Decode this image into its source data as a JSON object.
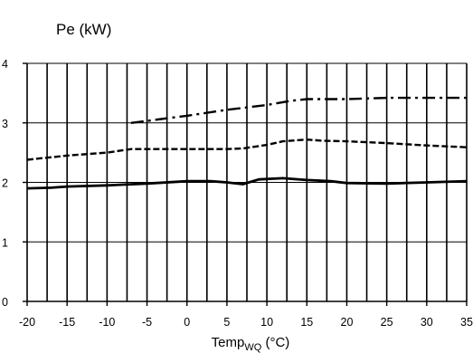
{
  "chart_data": {
    "type": "line",
    "ylabel": "Pe (kW)",
    "xlabel_main": "Temp",
    "xlabel_sub": "WQ",
    "xlabel_unit": " (°C)",
    "xlim": [
      -20,
      35
    ],
    "ylim": [
      0,
      4
    ],
    "x_ticks": [
      -20,
      -15,
      -10,
      -5,
      0,
      5,
      10,
      15,
      20,
      25,
      30,
      35
    ],
    "x_tick_labels": [
      "-20",
      "-15",
      "-10",
      "-5",
      "0",
      "5",
      "10",
      "15",
      "20",
      "25",
      "30",
      "35"
    ],
    "y_ticks": [
      0,
      1,
      2,
      3,
      4
    ],
    "y_tick_labels": [
      "0",
      "1",
      "2",
      "3",
      "4"
    ],
    "grid": "vertical",
    "series": [
      {
        "style": "solid",
        "points": [
          [
            -20,
            1.9
          ],
          [
            -17,
            1.91
          ],
          [
            -15,
            1.93
          ],
          [
            -10,
            1.95
          ],
          [
            -5,
            1.98
          ],
          [
            0,
            2.02
          ],
          [
            3,
            2.02
          ],
          [
            5,
            2.0
          ],
          [
            7,
            1.97
          ],
          [
            9,
            2.05
          ],
          [
            12,
            2.07
          ],
          [
            15,
            2.04
          ],
          [
            18,
            2.02
          ],
          [
            20,
            1.99
          ],
          [
            25,
            1.98
          ],
          [
            30,
            2.0
          ],
          [
            35,
            2.02
          ]
        ]
      },
      {
        "style": "dashed",
        "points": [
          [
            -20,
            2.38
          ],
          [
            -15,
            2.45
          ],
          [
            -10,
            2.5
          ],
          [
            -7,
            2.56
          ],
          [
            0,
            2.56
          ],
          [
            5,
            2.56
          ],
          [
            7,
            2.57
          ],
          [
            10,
            2.63
          ],
          [
            12,
            2.69
          ],
          [
            15,
            2.72
          ],
          [
            17,
            2.7
          ],
          [
            20,
            2.69
          ],
          [
            25,
            2.66
          ],
          [
            30,
            2.62
          ],
          [
            35,
            2.59
          ]
        ]
      },
      {
        "style": "dash-dot",
        "points": [
          [
            -7,
            3.0
          ],
          [
            0,
            3.12
          ],
          [
            5,
            3.22
          ],
          [
            10,
            3.3
          ],
          [
            13,
            3.37
          ],
          [
            15,
            3.4
          ],
          [
            20,
            3.4
          ],
          [
            25,
            3.42
          ],
          [
            30,
            3.42
          ],
          [
            35,
            3.42
          ]
        ]
      }
    ]
  }
}
